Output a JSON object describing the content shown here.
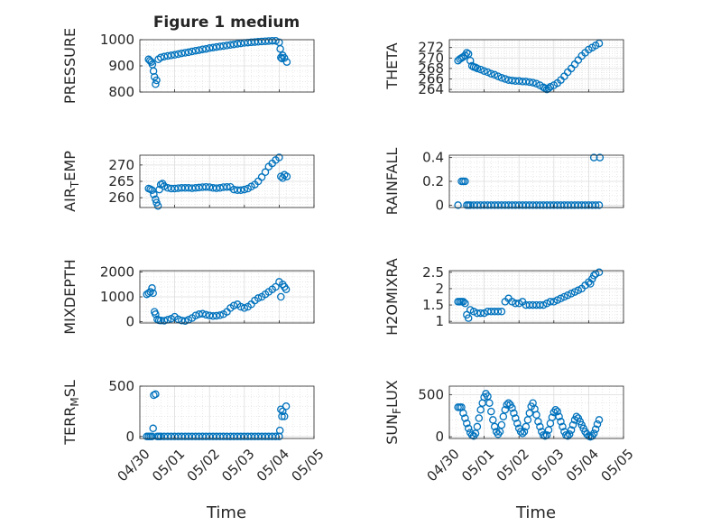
{
  "figure": {
    "title": "Figure 1 medium",
    "xlabel": "Time"
  },
  "style": {
    "marker_color": "#0072BD",
    "axis_color": "#262626",
    "grid_color": "#dcdcdc",
    "background": "#ffffff"
  },
  "chart_data": [
    {
      "type": "scatter",
      "ylabel": "PRESSURE",
      "ylim": [
        800,
        1000
      ],
      "yticks": [
        800,
        900,
        1000
      ],
      "ytick_labels": [
        "800",
        "900",
        "1000"
      ],
      "xlim": [
        0,
        5
      ],
      "xticks": [
        0,
        1,
        2,
        3,
        4,
        5
      ],
      "xtick_labels": [],
      "grid": true,
      "x": [
        0.25,
        0.29,
        0.33,
        0.36,
        0.39,
        0.42,
        0.45,
        0.48,
        0.53,
        0.6,
        0.7,
        0.8,
        0.9,
        1.0,
        1.1,
        1.2,
        1.3,
        1.4,
        1.5,
        1.6,
        1.7,
        1.8,
        1.9,
        2.0,
        2.1,
        2.2,
        2.3,
        2.4,
        2.5,
        2.6,
        2.7,
        2.8,
        2.9,
        3.0,
        3.1,
        3.2,
        3.3,
        3.4,
        3.5,
        3.6,
        3.7,
        3.8,
        3.9,
        4.0,
        4.03,
        4.05,
        4.08,
        4.1,
        4.15,
        4.22
      ],
      "y": [
        925,
        920,
        915,
        905,
        880,
        858,
        830,
        845,
        925,
        932,
        935,
        938,
        940,
        942,
        945,
        948,
        950,
        952,
        955,
        958,
        960,
        963,
        965,
        968,
        970,
        972,
        974,
        976,
        978,
        980,
        982,
        984,
        986,
        988,
        989,
        990,
        991,
        992,
        993,
        994,
        995,
        996,
        996,
        990,
        965,
        932,
        928,
        940,
        930,
        915
      ]
    },
    {
      "type": "scatter",
      "ylabel": "THETA",
      "ylim": [
        263.5,
        273.5
      ],
      "yticks": [
        264,
        266,
        268,
        270,
        272
      ],
      "ytick_labels": [
        "264",
        "266",
        "268",
        "270",
        "272"
      ],
      "xlim": [
        0,
        5
      ],
      "xticks": [
        0,
        1,
        2,
        3,
        4,
        5
      ],
      "xtick_labels": [],
      "grid": true,
      "x": [
        0.25,
        0.3,
        0.35,
        0.4,
        0.45,
        0.5,
        0.55,
        0.6,
        0.65,
        0.7,
        0.75,
        0.8,
        0.9,
        1.0,
        1.1,
        1.2,
        1.3,
        1.4,
        1.5,
        1.6,
        1.7,
        1.8,
        1.9,
        2.0,
        2.1,
        2.2,
        2.3,
        2.4,
        2.5,
        2.6,
        2.7,
        2.75,
        2.8,
        2.85,
        2.9,
        3.0,
        3.1,
        3.2,
        3.3,
        3.4,
        3.5,
        3.6,
        3.7,
        3.8,
        3.9,
        4.0,
        4.1,
        4.2,
        4.3
      ],
      "y": [
        269.5,
        269.8,
        270.0,
        270.2,
        270.5,
        271.0,
        270.8,
        269.5,
        268.5,
        268.3,
        268.2,
        268.0,
        267.8,
        267.5,
        267.3,
        267.0,
        266.8,
        266.5,
        266.2,
        266.0,
        265.8,
        265.7,
        265.6,
        265.6,
        265.5,
        265.5,
        265.4,
        265.3,
        265.1,
        264.8,
        264.4,
        264.2,
        264.0,
        264.2,
        264.5,
        264.8,
        265.2,
        265.8,
        266.5,
        267.3,
        268.0,
        268.8,
        269.6,
        270.4,
        271.0,
        271.6,
        272.0,
        272.4,
        272.8
      ]
    },
    {
      "type": "scatter",
      "ylabel": "AIR_TEMP",
      "ylim": [
        257,
        273
      ],
      "yticks": [
        260,
        265,
        270
      ],
      "ytick_labels": [
        "260",
        "265",
        "270"
      ],
      "xlim": [
        0,
        5
      ],
      "xticks": [
        0,
        1,
        2,
        3,
        4,
        5
      ],
      "xtick_labels": [],
      "grid": true,
      "x": [
        0.25,
        0.3,
        0.35,
        0.4,
        0.45,
        0.48,
        0.52,
        0.56,
        0.6,
        0.65,
        0.7,
        0.8,
        0.9,
        1.0,
        1.1,
        1.2,
        1.3,
        1.4,
        1.5,
        1.6,
        1.7,
        1.8,
        1.9,
        2.0,
        2.1,
        2.2,
        2.3,
        2.4,
        2.5,
        2.6,
        2.7,
        2.8,
        2.9,
        3.0,
        3.1,
        3.2,
        3.3,
        3.4,
        3.5,
        3.6,
        3.7,
        3.8,
        3.9,
        4.0,
        4.05,
        4.1,
        4.15,
        4.22
      ],
      "y": [
        262.8,
        262.6,
        262.3,
        261.0,
        259.5,
        258.5,
        257.5,
        262.5,
        264.0,
        264.3,
        263.5,
        263.0,
        262.8,
        262.8,
        262.9,
        263.0,
        263.0,
        263.0,
        262.9,
        263.0,
        263.1,
        263.2,
        263.3,
        263.2,
        263.0,
        262.9,
        263.0,
        263.2,
        263.3,
        263.3,
        262.5,
        262.3,
        262.3,
        262.5,
        262.8,
        263.4,
        264.0,
        265.0,
        266.3,
        267.8,
        269.5,
        270.5,
        271.5,
        272.3,
        266.5,
        266.0,
        267.0,
        266.5
      ]
    },
    {
      "type": "scatter",
      "ylabel": "RAINFALL",
      "ylim": [
        -0.02,
        0.42
      ],
      "yticks": [
        0,
        0.2,
        0.4
      ],
      "ytick_labels": [
        "0",
        "0.2",
        "0.4"
      ],
      "xlim": [
        0,
        5
      ],
      "xticks": [
        0,
        1,
        2,
        3,
        4,
        5
      ],
      "xtick_labels": [],
      "grid": true,
      "x": [
        0.25,
        0.35,
        0.4,
        0.45,
        0.5,
        0.55,
        0.6,
        0.7,
        0.8,
        0.9,
        1.0,
        1.1,
        1.2,
        1.3,
        1.4,
        1.5,
        1.6,
        1.7,
        1.8,
        1.9,
        2.0,
        2.1,
        2.2,
        2.3,
        2.4,
        2.5,
        2.6,
        2.7,
        2.8,
        2.9,
        3.0,
        3.1,
        3.2,
        3.3,
        3.4,
        3.5,
        3.6,
        3.7,
        3.8,
        3.9,
        4.0,
        4.1,
        4.2,
        4.3,
        4.15,
        4.32
      ],
      "y": [
        0,
        0.2,
        0.2,
        0.2,
        0,
        0,
        0,
        0,
        0,
        0,
        0,
        0,
        0,
        0,
        0,
        0,
        0,
        0,
        0,
        0,
        0,
        0,
        0,
        0,
        0,
        0,
        0,
        0,
        0,
        0,
        0,
        0,
        0,
        0,
        0,
        0,
        0,
        0,
        0,
        0,
        0,
        0,
        0,
        0,
        0.4,
        0.4
      ]
    },
    {
      "type": "scatter",
      "ylabel": "MIXDEPTH",
      "ylim": [
        -50,
        2050
      ],
      "yticks": [
        0,
        1000,
        2000
      ],
      "ytick_labels": [
        "0",
        "1000",
        "2000"
      ],
      "xlim": [
        0,
        5
      ],
      "xticks": [
        0,
        1,
        2,
        3,
        4,
        5
      ],
      "xtick_labels": [],
      "grid": true,
      "x": [
        0.2,
        0.25,
        0.3,
        0.35,
        0.38,
        0.42,
        0.45,
        0.5,
        0.55,
        0.6,
        0.7,
        0.8,
        0.9,
        1.0,
        1.1,
        1.2,
        1.3,
        1.4,
        1.5,
        1.6,
        1.7,
        1.8,
        1.9,
        2.0,
        2.1,
        2.2,
        2.3,
        2.4,
        2.5,
        2.6,
        2.7,
        2.8,
        2.9,
        3.0,
        3.1,
        3.2,
        3.3,
        3.4,
        3.5,
        3.6,
        3.7,
        3.8,
        3.9,
        4.0,
        4.05,
        4.1,
        4.15,
        4.2
      ],
      "y": [
        1100,
        1150,
        1200,
        1350,
        1150,
        400,
        300,
        100,
        60,
        50,
        40,
        80,
        120,
        200,
        100,
        50,
        30,
        80,
        150,
        250,
        300,
        320,
        280,
        250,
        230,
        240,
        260,
        300,
        400,
        550,
        650,
        700,
        600,
        550,
        600,
        700,
        850,
        950,
        1000,
        1100,
        1200,
        1300,
        1400,
        1600,
        1000,
        1500,
        1400,
        1300
      ]
    },
    {
      "type": "scatter",
      "ylabel": "H2OMIXRA",
      "ylim": [
        0.95,
        2.55
      ],
      "yticks": [
        1,
        1.5,
        2,
        2.5
      ],
      "ytick_labels": [
        "1",
        "1.5",
        "2",
        "2.5"
      ],
      "xlim": [
        0,
        5
      ],
      "xticks": [
        0,
        1,
        2,
        3,
        4,
        5
      ],
      "xtick_labels": [],
      "grid": true,
      "x": [
        0.25,
        0.3,
        0.35,
        0.4,
        0.45,
        0.5,
        0.55,
        0.6,
        0.7,
        0.8,
        0.9,
        1.0,
        1.1,
        1.2,
        1.3,
        1.4,
        1.5,
        1.6,
        1.7,
        1.8,
        1.9,
        2.0,
        2.1,
        2.2,
        2.3,
        2.4,
        2.5,
        2.6,
        2.7,
        2.8,
        2.9,
        3.0,
        3.1,
        3.2,
        3.3,
        3.4,
        3.5,
        3.6,
        3.7,
        3.8,
        3.9,
        4.0,
        4.05,
        4.1,
        4.15,
        4.2,
        4.3
      ],
      "y": [
        1.6,
        1.6,
        1.6,
        1.6,
        1.55,
        1.2,
        1.1,
        1.35,
        1.3,
        1.25,
        1.25,
        1.25,
        1.3,
        1.3,
        1.3,
        1.3,
        1.3,
        1.6,
        1.7,
        1.6,
        1.55,
        1.55,
        1.6,
        1.5,
        1.5,
        1.5,
        1.5,
        1.5,
        1.5,
        1.55,
        1.6,
        1.6,
        1.65,
        1.7,
        1.75,
        1.8,
        1.85,
        1.9,
        1.95,
        2.0,
        2.1,
        2.2,
        2.15,
        2.3,
        2.4,
        2.45,
        2.5
      ]
    },
    {
      "type": "scatter",
      "ylabel": "TERR_MSL",
      "ylim": [
        -20,
        500
      ],
      "yticks": [
        0,
        500
      ],
      "ytick_labels": [
        "0",
        "500"
      ],
      "xlim": [
        0,
        5
      ],
      "xticks": [
        0,
        1,
        2,
        3,
        4,
        5
      ],
      "xtick_labels": [
        "04/30",
        "05/01",
        "05/02",
        "05/03",
        "05/04",
        "05/05"
      ],
      "grid": true,
      "x": [
        0.2,
        0.25,
        0.3,
        0.35,
        0.38,
        0.4,
        0.45,
        0.5,
        0.55,
        0.6,
        0.7,
        0.8,
        0.9,
        1.0,
        1.1,
        1.2,
        1.3,
        1.4,
        1.5,
        1.6,
        1.7,
        1.8,
        1.9,
        2.0,
        2.1,
        2.2,
        2.3,
        2.4,
        2.5,
        2.6,
        2.7,
        2.8,
        2.9,
        3.0,
        3.1,
        3.2,
        3.3,
        3.4,
        3.5,
        3.6,
        3.7,
        3.8,
        3.9,
        4.0,
        4.02,
        4.05,
        4.08,
        4.1,
        4.15,
        4.2
      ],
      "y": [
        0,
        0,
        0,
        0,
        80,
        410,
        420,
        0,
        0,
        0,
        0,
        0,
        0,
        0,
        0,
        0,
        0,
        0,
        0,
        0,
        0,
        0,
        0,
        0,
        0,
        0,
        0,
        0,
        0,
        0,
        0,
        0,
        0,
        0,
        0,
        0,
        0,
        0,
        0,
        0,
        0,
        0,
        0,
        0,
        60,
        270,
        200,
        250,
        200,
        300
      ]
    },
    {
      "type": "scatter",
      "ylabel": "SUN_FLUX",
      "ylim": [
        -20,
        600
      ],
      "yticks": [
        0,
        500
      ],
      "ytick_labels": [
        "0",
        "500"
      ],
      "xlim": [
        0,
        5
      ],
      "xticks": [
        0,
        1,
        2,
        3,
        4,
        5
      ],
      "xtick_labels": [
        "04/30",
        "05/01",
        "05/02",
        "05/03",
        "05/04",
        "05/05"
      ],
      "grid": true,
      "x": [
        0.25,
        0.3,
        0.35,
        0.4,
        0.45,
        0.5,
        0.55,
        0.6,
        0.65,
        0.7,
        0.75,
        0.8,
        0.85,
        0.9,
        0.95,
        1.0,
        1.05,
        1.1,
        1.15,
        1.2,
        1.25,
        1.3,
        1.35,
        1.4,
        1.45,
        1.5,
        1.55,
        1.6,
        1.65,
        1.7,
        1.75,
        1.8,
        1.85,
        1.9,
        1.95,
        2.0,
        2.05,
        2.1,
        2.15,
        2.2,
        2.25,
        2.3,
        2.35,
        2.4,
        2.45,
        2.5,
        2.55,
        2.6,
        2.65,
        2.7,
        2.75,
        2.8,
        2.85,
        2.9,
        2.95,
        3.0,
        3.05,
        3.1,
        3.15,
        3.2,
        3.25,
        3.3,
        3.35,
        3.4,
        3.45,
        3.5,
        3.55,
        3.6,
        3.65,
        3.7,
        3.75,
        3.8,
        3.85,
        3.9,
        3.95,
        4.0,
        4.05,
        4.1,
        4.15,
        4.2,
        4.25,
        4.3
      ],
      "y": [
        350,
        350,
        350,
        280,
        220,
        160,
        100,
        50,
        20,
        10,
        40,
        120,
        220,
        320,
        400,
        470,
        510,
        480,
        400,
        300,
        200,
        120,
        60,
        30,
        60,
        140,
        240,
        320,
        380,
        400,
        380,
        340,
        280,
        220,
        160,
        100,
        60,
        40,
        60,
        120,
        200,
        280,
        360,
        400,
        330,
        260,
        180,
        120,
        60,
        20,
        10,
        20,
        80,
        160,
        230,
        290,
        320,
        300,
        240,
        180,
        120,
        60,
        20,
        10,
        30,
        80,
        140,
        200,
        240,
        220,
        180,
        140,
        100,
        60,
        30,
        10,
        0,
        10,
        40,
        90,
        150,
        200
      ]
    }
  ]
}
